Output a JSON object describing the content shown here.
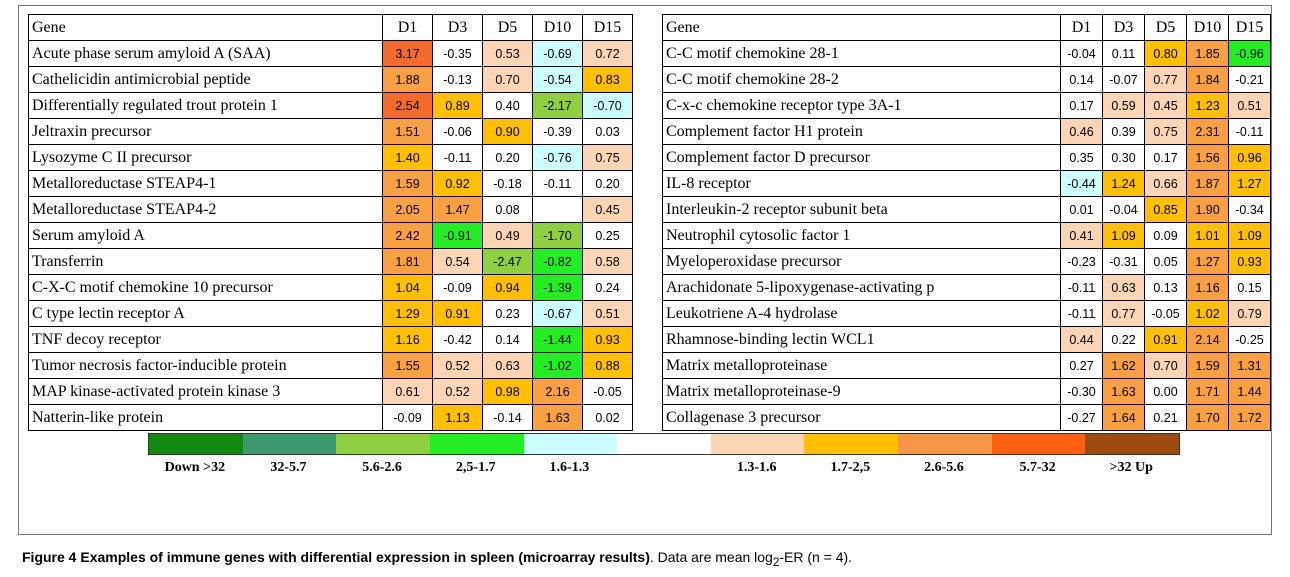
{
  "tables": [
    {
      "header": [
        "Gene",
        "D1",
        "D3",
        "D5",
        "D10",
        "D15"
      ],
      "rows": [
        {
          "gene": "Acute phase serum amyloid A (SAA)",
          "values": [
            "3.17",
            "-0.35",
            "0.53",
            "-0.69",
            "0.72"
          ],
          "colors": [
            "#f26b2a",
            null,
            "#fcd5b4",
            "#ccffff",
            "#fcd5b4"
          ]
        },
        {
          "gene": "Cathelicidin antimicrobial peptide",
          "values": [
            "1.88",
            "-0.13",
            "0.70",
            "-0.54",
            "0.83"
          ],
          "colors": [
            "#f9a040",
            null,
            "#fcd5b4",
            "#ccffff",
            "#ffc000"
          ]
        },
        {
          "gene": "Differentially regulated trout protein 1",
          "values": [
            "2.54",
            "0.89",
            "0.40",
            "-2.17",
            "-0.70"
          ],
          "colors": [
            "#f26b2a",
            "#ffc000",
            null,
            "#8fd040",
            "#ccffff"
          ]
        },
        {
          "gene": "Jeltraxin precursor",
          "values": [
            "1.51",
            "-0.06",
            "0.90",
            "-0.39",
            "0.03"
          ],
          "colors": [
            "#f9a040",
            null,
            "#ffc000",
            null,
            null
          ]
        },
        {
          "gene": "Lysozyme C II precursor",
          "values": [
            "1.40",
            "-0.11",
            "0.20",
            "-0.76",
            "0.75"
          ],
          "colors": [
            "#ffc000",
            null,
            null,
            "#ccffff",
            "#fcd5b4"
          ]
        },
        {
          "gene": "Metalloreductase STEAP4-1",
          "values": [
            "1.59",
            "0.92",
            "-0.18",
            "-0.11",
            "0.20"
          ],
          "colors": [
            "#f9a040",
            "#ffc000",
            null,
            null,
            null
          ]
        },
        {
          "gene": "Metalloreductase STEAP4-2",
          "values": [
            "2.05",
            "1.47",
            "0.08",
            "",
            "0.45"
          ],
          "colors": [
            "#f9a040",
            "#f9a040",
            null,
            null,
            "#fcd5b4"
          ]
        },
        {
          "gene": "Serum amyloid A",
          "values": [
            "2.42",
            "-0.91",
            "0.49",
            "-1.70",
            "0.25"
          ],
          "colors": [
            "#f9a040",
            "#22ee22",
            "#fcd5b4",
            "#8fd040",
            null
          ]
        },
        {
          "gene": "Transferrin",
          "values": [
            "1.81",
            "0.54",
            "-2.47",
            "-0.82",
            "0.58"
          ],
          "colors": [
            "#f9a040",
            "#fcd5b4",
            "#8fd040",
            "#22ee22",
            "#fcd5b4"
          ]
        },
        {
          "gene": "C-X-C motif chemokine 10 precursor",
          "values": [
            "1.04",
            "-0.09",
            "0.94",
            "-1.39",
            "0.24"
          ],
          "colors": [
            "#ffc000",
            null,
            "#ffc000",
            "#22ee22",
            null
          ]
        },
        {
          "gene": "C type lectin receptor A",
          "values": [
            "1.29",
            "0.91",
            "0.23",
            "-0.67",
            "0.51"
          ],
          "colors": [
            "#ffc000",
            "#ffc000",
            null,
            "#ccffff",
            "#fcd5b4"
          ]
        },
        {
          "gene": "TNF decoy receptor",
          "values": [
            "1.16",
            "-0.42",
            "0.14",
            "-1.44",
            "0.93"
          ],
          "colors": [
            "#ffc000",
            null,
            null,
            "#22ee22",
            "#ffc000"
          ]
        },
        {
          "gene": "Tumor necrosis factor-inducible protein",
          "values": [
            "1.55",
            "0.52",
            "0.63",
            "-1.02",
            "0.88"
          ],
          "colors": [
            "#f9a040",
            "#fcd5b4",
            "#fcd5b4",
            "#22ee22",
            "#ffc000"
          ]
        },
        {
          "gene": "MAP kinase-activated protein kinase 3",
          "values": [
            "0.61",
            "0.52",
            "0.98",
            "2.16",
            "-0.05"
          ],
          "colors": [
            "#fcd5b4",
            "#fcd5b4",
            "#ffc000",
            "#f9a040",
            null
          ]
        },
        {
          "gene": "Natterin-like protein",
          "values": [
            "-0.09",
            "1.13",
            "-0.14",
            "1.63",
            "0.02"
          ],
          "colors": [
            null,
            "#ffc000",
            null,
            "#f9a040",
            null
          ]
        }
      ]
    },
    {
      "header": [
        "Gene",
        "D1",
        "D3",
        "D5",
        "D10",
        "D15"
      ],
      "rows": [
        {
          "gene": "C-C motif chemokine 28-1",
          "values": [
            "-0.04",
            "0.11",
            "0.80",
            "1.85",
            "-0.96"
          ],
          "colors": [
            null,
            null,
            "#ffc000",
            "#f9a040",
            "#22ee22"
          ]
        },
        {
          "gene": "C-C motif chemokine 28-2",
          "values": [
            "0.14",
            "-0.07",
            "0.77",
            "1.84",
            "-0.21"
          ],
          "colors": [
            null,
            null,
            "#fcd5b4",
            "#f9a040",
            null
          ]
        },
        {
          "gene": "C-x-c chemokine receptor type 3A-1",
          "values": [
            "0.17",
            "0.59",
            "0.45",
            "1.23",
            "0.51"
          ],
          "colors": [
            null,
            "#fcd5b4",
            "#fcd5b4",
            "#ffc000",
            "#fcd5b4"
          ]
        },
        {
          "gene": "Complement factor H1 protein",
          "values": [
            "0.46",
            "0.39",
            "0.75",
            "2.31",
            "-0.11"
          ],
          "colors": [
            "#fcd5b4",
            null,
            "#fcd5b4",
            "#f9a040",
            null
          ]
        },
        {
          "gene": "Complement factor D precursor",
          "values": [
            "0.35",
            "0.30",
            "0.17",
            "1.56",
            "0.96"
          ],
          "colors": [
            null,
            null,
            null,
            "#f9a040",
            "#ffc000"
          ]
        },
        {
          "gene": "IL-8 receptor",
          "values": [
            "-0.44",
            "1.24",
            "0.66",
            "1.87",
            "1.27"
          ],
          "colors": [
            "#ccffff",
            "#ffc000",
            "#fcd5b4",
            "#f9a040",
            "#ffc000"
          ]
        },
        {
          "gene": "Interleukin-2 receptor subunit beta",
          "values": [
            "0.01",
            "-0.04",
            "0.85",
            "1.90",
            "-0.34"
          ],
          "colors": [
            null,
            null,
            "#ffc000",
            "#f9a040",
            null
          ]
        },
        {
          "gene": "Neutrophil cytosolic factor 1",
          "values": [
            "0.41",
            "1.09",
            "0.09",
            "1.01",
            "1.09"
          ],
          "colors": [
            "#fcd5b4",
            "#ffc000",
            null,
            "#ffc000",
            "#ffc000"
          ]
        },
        {
          "gene": "Myeloperoxidase precursor",
          "values": [
            "-0.23",
            "-0.31",
            "0.05",
            "1.27",
            "0.93"
          ],
          "colors": [
            null,
            null,
            null,
            "#f9a040",
            "#ffc000"
          ]
        },
        {
          "gene": "Arachidonate 5-lipoxygenase-activating p",
          "values": [
            "-0.11",
            "0.63",
            "0.13",
            "1.16",
            "0.15"
          ],
          "colors": [
            null,
            "#fcd5b4",
            null,
            "#f9a040",
            null
          ]
        },
        {
          "gene": "Leukotriene A-4 hydrolase",
          "values": [
            "-0.11",
            "0.77",
            "-0.05",
            "1.02",
            "0.79"
          ],
          "colors": [
            null,
            "#fcd5b4",
            null,
            "#ffc000",
            "#fcd5b4"
          ]
        },
        {
          "gene": "Rhamnose-binding lectin WCL1",
          "values": [
            "0.44",
            "0.22",
            "0.91",
            "2.14",
            "-0.25"
          ],
          "colors": [
            "#fcd5b4",
            null,
            "#ffc000",
            "#f9a040",
            null
          ]
        },
        {
          "gene": "Matrix metalloproteinase",
          "values": [
            "0.27",
            "1.62",
            "0.70",
            "1.59",
            "1.31"
          ],
          "colors": [
            null,
            "#f9a040",
            "#fcd5b4",
            "#f9a040",
            "#f9a040"
          ]
        },
        {
          "gene": "Matrix metalloproteinase-9",
          "values": [
            "-0.30",
            "1.63",
            "0.00",
            "1.71",
            "1.44"
          ],
          "colors": [
            null,
            "#f9a040",
            null,
            "#f9a040",
            "#f9a040"
          ]
        },
        {
          "gene": "Collagenase 3 precursor",
          "values": [
            "-0.27",
            "1.64",
            "0.21",
            "1.70",
            "1.72"
          ],
          "colors": [
            null,
            "#f9a040",
            null,
            "#f9a040",
            "#f9a040"
          ]
        }
      ]
    }
  ],
  "legend": [
    {
      "label": "Down >32",
      "color": "#128a12"
    },
    {
      "label": "32-5.7",
      "color": "#3c9a6c"
    },
    {
      "label": "5.6-2.6",
      "color": "#8fd040"
    },
    {
      "label": "2,5-1.7",
      "color": "#22ee22"
    },
    {
      "label": "1.6-1.3",
      "color": "#ccffff"
    },
    {
      "label": null,
      "color": "#ffffff"
    },
    {
      "label": "1.3-1.6",
      "color": "#fcd5b4"
    },
    {
      "label": "1.7-2,5",
      "color": "#ffc000"
    },
    {
      "label": "2.6-5.6",
      "color": "#f79646"
    },
    {
      "label": "5.7-32",
      "color": "#ff6010"
    },
    {
      "label": ">32 Up",
      "color": "#9c4a10"
    }
  ],
  "caption": {
    "label": "Figure 4",
    "title": "Examples of immune genes with differential expression in spleen (microarray results)",
    "text_before": ". Data are mean log",
    "subscript": "2",
    "text_after": "-ER (n = 4)."
  }
}
